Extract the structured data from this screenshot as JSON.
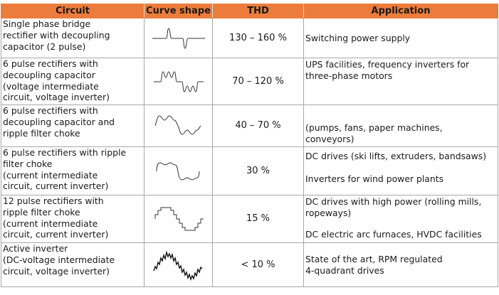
{
  "table": {
    "headers": {
      "circuit": "Circuit",
      "curve": "Curve shape",
      "thd": "THD",
      "application": "Application"
    },
    "rows": [
      {
        "circuit": [
          "Single phase bridge",
          "rectifier with decoupling",
          "capacitor (2 pulse)"
        ],
        "curve_icon": "two-pulse-current-waveform-icon",
        "thd": "130 – 160 %",
        "application": [
          "Switching power supply"
        ]
      },
      {
        "circuit": [
          "6 pulse rectifiers with",
          "decoupling capacitor",
          "(voltage intermediate",
          "circuit, voltage inverter)"
        ],
        "curve_icon": "six-pulse-capacitor-waveform-icon",
        "thd": "70 – 120 %",
        "application": [
          "UPS facilities, frequency inverters for",
          "three-phase motors"
        ]
      },
      {
        "circuit": [
          "6 pulse rectifiers with",
          "decoupling capacitor and",
          "ripple filter choke"
        ],
        "curve_icon": "six-pulse-choke-waveform-icon",
        "thd": "40 – 70 %",
        "application": [
          "(pumps, fans, paper machines,",
          "conveyors)"
        ]
      },
      {
        "circuit": [
          "6 pulse rectifiers with ripple",
          "filter choke",
          "(current intermediate",
          "circuit, current inverter)"
        ],
        "curve_icon": "six-pulse-current-waveform-icon",
        "thd": "30 %",
        "application": [
          "DC drives (ski lifts, extruders, bandsaws)",
          "Inverters for wind power plants"
        ]
      },
      {
        "circuit": [
          "12 pulse rectifiers with",
          "ripple filter choke",
          "(current intermediate",
          "circuit, current inverter)"
        ],
        "curve_icon": "twelve-pulse-stepped-waveform-icon",
        "thd": "15 %",
        "application": [
          "DC drives with high power (rolling mills,",
          "ropeways)",
          "DC electric arc furnaces, HVDC facilities"
        ]
      },
      {
        "circuit": [
          "Active inverter",
          "(DC-voltage intermediate",
          "circuit, voltage inverter)"
        ],
        "curve_icon": "active-inverter-noisy-sine-icon",
        "thd": "< 10 %",
        "application": [
          "State of the art, RPM regulated",
          "4-quadrant drives"
        ]
      }
    ]
  }
}
